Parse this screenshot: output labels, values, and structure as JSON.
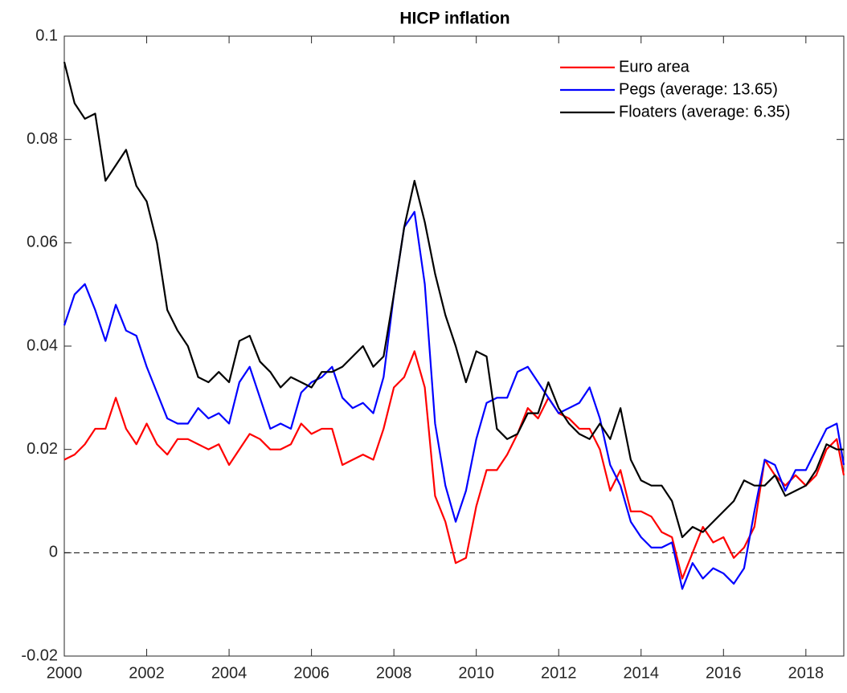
{
  "chart_data": {
    "type": "line",
    "title": "HICP inflation",
    "x": [
      2000,
      2000.25,
      2000.5,
      2000.75,
      2001,
      2001.25,
      2001.5,
      2001.75,
      2002,
      2002.25,
      2002.5,
      2002.75,
      2003,
      2003.25,
      2003.5,
      2003.75,
      2004,
      2004.25,
      2004.5,
      2004.75,
      2005,
      2005.25,
      2005.5,
      2005.75,
      2006,
      2006.25,
      2006.5,
      2006.75,
      2007,
      2007.25,
      2007.5,
      2007.75,
      2008,
      2008.25,
      2008.5,
      2008.75,
      2009,
      2009.25,
      2009.5,
      2009.75,
      2010,
      2010.25,
      2010.5,
      2010.75,
      2011,
      2011.25,
      2011.5,
      2011.75,
      2012,
      2012.25,
      2012.5,
      2012.75,
      2013,
      2013.25,
      2013.5,
      2013.75,
      2014,
      2014.25,
      2014.5,
      2014.75,
      2015,
      2015.25,
      2015.5,
      2015.75,
      2016,
      2016.25,
      2016.5,
      2016.75,
      2017,
      2017.25,
      2017.5,
      2017.75,
      2018,
      2018.25,
      2018.5,
      2018.75,
      2018.92
    ],
    "series": [
      {
        "name": "Euro area",
        "color": "#ff0000",
        "values": [
          0.018,
          0.019,
          0.021,
          0.024,
          0.024,
          0.03,
          0.024,
          0.021,
          0.025,
          0.021,
          0.019,
          0.022,
          0.022,
          0.021,
          0.02,
          0.021,
          0.017,
          0.02,
          0.023,
          0.022,
          0.02,
          0.02,
          0.021,
          0.025,
          0.023,
          0.024,
          0.024,
          0.017,
          0.018,
          0.019,
          0.018,
          0.024,
          0.032,
          0.034,
          0.039,
          0.032,
          0.011,
          0.006,
          -0.002,
          -0.001,
          0.009,
          0.016,
          0.016,
          0.019,
          0.023,
          0.028,
          0.026,
          0.03,
          0.027,
          0.026,
          0.024,
          0.024,
          0.02,
          0.012,
          0.016,
          0.008,
          0.008,
          0.007,
          0.004,
          0.003,
          -0.005,
          0.0,
          0.005,
          0.002,
          0.003,
          -0.001,
          0.001,
          0.005,
          0.018,
          0.015,
          0.013,
          0.015,
          0.013,
          0.015,
          0.02,
          0.022,
          0.015
        ]
      },
      {
        "name": "Pegs (average: 13.65)",
        "color": "#0000ff",
        "values": [
          0.044,
          0.05,
          0.052,
          0.047,
          0.041,
          0.048,
          0.043,
          0.042,
          0.036,
          0.031,
          0.026,
          0.025,
          0.025,
          0.028,
          0.026,
          0.027,
          0.025,
          0.033,
          0.036,
          0.03,
          0.024,
          0.025,
          0.024,
          0.031,
          0.033,
          0.034,
          0.036,
          0.03,
          0.028,
          0.029,
          0.027,
          0.034,
          0.05,
          0.063,
          0.066,
          0.052,
          0.025,
          0.013,
          0.006,
          0.012,
          0.022,
          0.029,
          0.03,
          0.03,
          0.035,
          0.036,
          0.033,
          0.03,
          0.027,
          0.028,
          0.029,
          0.032,
          0.026,
          0.017,
          0.013,
          0.006,
          0.003,
          0.001,
          0.001,
          0.002,
          -0.007,
          -0.002,
          -0.005,
          -0.003,
          -0.004,
          -0.006,
          -0.003,
          0.008,
          0.018,
          0.017,
          0.012,
          0.016,
          0.016,
          0.02,
          0.024,
          0.025,
          0.017
        ]
      },
      {
        "name": "Floaters (average: 6.35)",
        "color": "#000000",
        "values": [
          0.095,
          0.087,
          0.084,
          0.085,
          0.072,
          0.075,
          0.078,
          0.071,
          0.068,
          0.06,
          0.047,
          0.043,
          0.04,
          0.034,
          0.033,
          0.035,
          0.033,
          0.041,
          0.042,
          0.037,
          0.035,
          0.032,
          0.034,
          0.033,
          0.032,
          0.035,
          0.035,
          0.036,
          0.038,
          0.04,
          0.036,
          0.038,
          0.05,
          0.063,
          0.072,
          0.064,
          0.054,
          0.046,
          0.04,
          0.033,
          0.039,
          0.038,
          0.024,
          0.022,
          0.023,
          0.027,
          0.027,
          0.033,
          0.028,
          0.025,
          0.023,
          0.022,
          0.025,
          0.022,
          0.028,
          0.018,
          0.014,
          0.013,
          0.013,
          0.01,
          0.003,
          0.005,
          0.004,
          0.006,
          0.008,
          0.01,
          0.014,
          0.013,
          0.013,
          0.015,
          0.011,
          0.012,
          0.013,
          0.016,
          0.021,
          0.02,
          0.02
        ]
      }
    ],
    "xlim": [
      2000,
      2018.92
    ],
    "xticks": [
      2000,
      2002,
      2004,
      2006,
      2008,
      2010,
      2012,
      2014,
      2016,
      2018
    ],
    "ylim": [
      -0.02,
      0.1
    ],
    "yticks": [
      -0.02,
      0,
      0.02,
      0.04,
      0.06,
      0.08,
      0.1
    ],
    "reference_line": 0,
    "legend": "upper-right",
    "grid": false
  }
}
